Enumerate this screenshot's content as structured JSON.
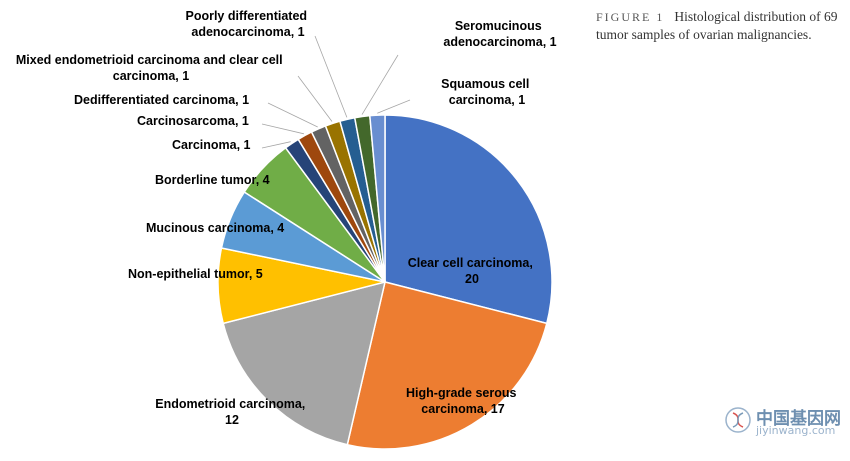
{
  "chart_data": {
    "type": "pie",
    "title": "",
    "slices": [
      {
        "label": "Clear cell carcinoma, 20",
        "value": 20,
        "color": "#4472C4"
      },
      {
        "label": "High-grade serous carcinoma, 17",
        "value": 17,
        "color": "#ED7D31"
      },
      {
        "label": "Endometrioid carcinoma, 12",
        "value": 12,
        "color": "#A5A5A5"
      },
      {
        "label": "Non-epithelial tumor, 5",
        "value": 5,
        "color": "#FFC000"
      },
      {
        "label": "Mucinous carcinoma, 4",
        "value": 4,
        "color": "#5B9BD5"
      },
      {
        "label": "Borderline tumor, 4",
        "value": 4,
        "color": "#70AD47"
      },
      {
        "label": "Carcinoma, 1",
        "value": 1,
        "color": "#264478"
      },
      {
        "label": "Carcinosarcoma, 1",
        "value": 1,
        "color": "#9E480E"
      },
      {
        "label": "Dedifferentiated carcinoma, 1",
        "value": 1,
        "color": "#636363"
      },
      {
        "label": "Mixed endometrioid carcinoma and clear cell carcinoma, 1",
        "value": 1,
        "color": "#997300"
      },
      {
        "label": "Poorly differentiated adenocarcinoma, 1",
        "value": 1,
        "color": "#255E91"
      },
      {
        "label": "Seromucinous adenocarcinoma, 1",
        "value": 1,
        "color": "#43682B"
      },
      {
        "label": "Squamous cell carcinoma, 1",
        "value": 1,
        "color": "#698ED0"
      }
    ]
  },
  "labels": {
    "clear_cell": [
      "Clear cell carcinoma,",
      "20"
    ],
    "hgsc": [
      "High-grade serous",
      "carcinoma, 17"
    ],
    "endometrioid": [
      "Endometrioid carcinoma,",
      "12"
    ],
    "non_epithelial": [
      "Non-epithelial tumor, 5"
    ],
    "mucinous": [
      "Mucinous carcinoma, 4"
    ],
    "borderline": [
      "Borderline tumor, 4"
    ],
    "carcinoma": [
      "Carcinoma, 1"
    ],
    "carcinosarcoma": [
      "Carcinosarcoma, 1"
    ],
    "dedifferentiated": [
      "Dedifferentiated carcinoma, 1"
    ],
    "mixed": [
      "Mixed endometrioid carcinoma and clear cell",
      "carcinoma, 1"
    ],
    "poorly": [
      "Poorly differentiated",
      "adenocarcinoma, 1"
    ],
    "seromucinous": [
      "Seromucinous",
      "adenocarcinoma, 1"
    ],
    "squamous": [
      "Squamous cell",
      "carcinoma, 1"
    ]
  },
  "caption": {
    "figure": "FIGURE 1",
    "text": "Histological distribution of 69 tumor samples of ovarian malignancies."
  },
  "watermark": {
    "cn": "中国基因网",
    "en": "jiyinwang.com",
    "logo_icon": "dna-circle-icon"
  }
}
